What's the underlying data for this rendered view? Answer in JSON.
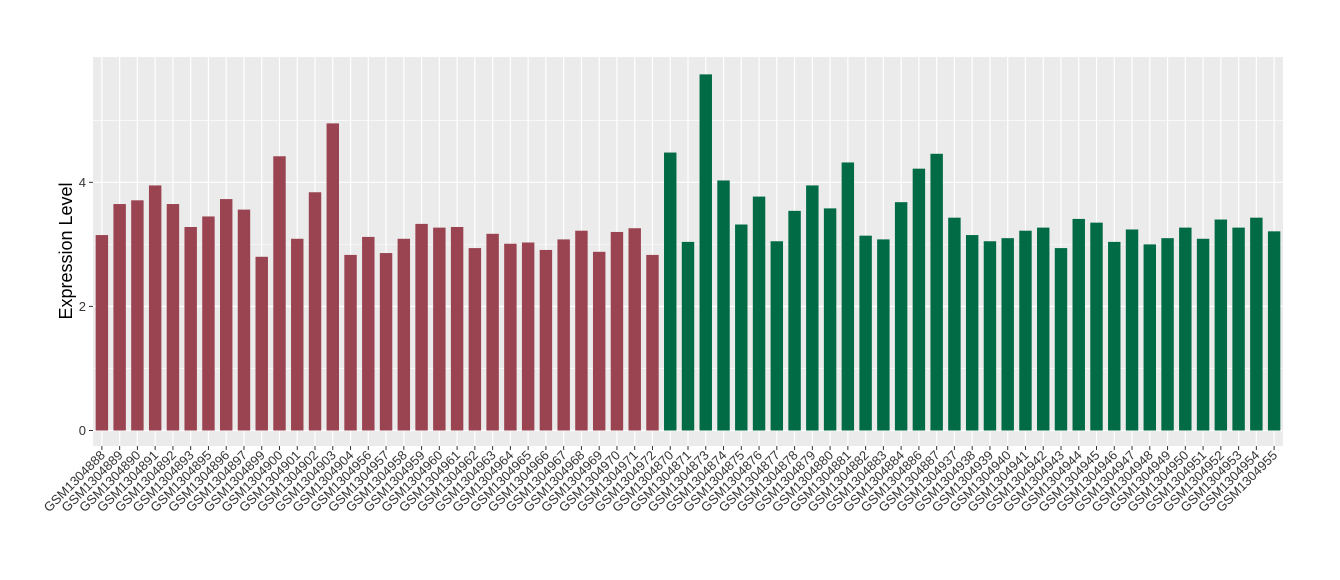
{
  "chart_data": {
    "type": "bar",
    "title": "",
    "xlabel": "",
    "ylabel": "Expression Level",
    "ylim": [
      -0.25,
      6.02
    ],
    "yticks": [
      0,
      2,
      4
    ],
    "grid": true,
    "legend": "none",
    "background": "#EBEBEB",
    "colors": {
      "group1": "#9A4451",
      "group2": "#006B45",
      "grid": "#FFFFFF",
      "axis_text": "#333333"
    },
    "series": [
      {
        "group": "group1",
        "color": "#9A4451",
        "categories": [
          "GSM1304888",
          "GSM1304889",
          "GSM1304890",
          "GSM1304891",
          "GSM1304892",
          "GSM1304893",
          "GSM1304895",
          "GSM1304896",
          "GSM1304897",
          "GSM1304899",
          "GSM1304900",
          "GSM1304901",
          "GSM1304902",
          "GSM1304903",
          "GSM1304904",
          "GSM1304956",
          "GSM1304957",
          "GSM1304958",
          "GSM1304959",
          "GSM1304960",
          "GSM1304961",
          "GSM1304962",
          "GSM1304963",
          "GSM1304964",
          "GSM1304965",
          "GSM1304966",
          "GSM1304967",
          "GSM1304968",
          "GSM1304969",
          "GSM1304970",
          "GSM1304971",
          "GSM1304972"
        ],
        "values": [
          3.15,
          3.65,
          3.71,
          3.95,
          3.65,
          3.28,
          3.45,
          3.73,
          3.56,
          2.8,
          4.42,
          3.09,
          3.84,
          4.95,
          2.83,
          3.12,
          2.86,
          3.09,
          3.33,
          3.27,
          3.28,
          2.94,
          3.17,
          3.01,
          3.03,
          2.91,
          3.08,
          3.22,
          2.88,
          3.2,
          3.26,
          2.83
        ]
      },
      {
        "group": "group2",
        "color": "#006B45",
        "categories": [
          "GSM1304870",
          "GSM1304871",
          "GSM1304873",
          "GSM1304874",
          "GSM1304875",
          "GSM1304876",
          "GSM1304877",
          "GSM1304878",
          "GSM1304879",
          "GSM1304880",
          "GSM1304881",
          "GSM1304882",
          "GSM1304883",
          "GSM1304884",
          "GSM1304886",
          "GSM1304887",
          "GSM1304937",
          "GSM1304938",
          "GSM1304939",
          "GSM1304940",
          "GSM1304941",
          "GSM1304942",
          "GSM1304943",
          "GSM1304944",
          "GSM1304945",
          "GSM1304946",
          "GSM1304947",
          "GSM1304948",
          "GSM1304949",
          "GSM1304950",
          "GSM1304951",
          "GSM1304952",
          "GSM1304953",
          "GSM1304954",
          "GSM1304955"
        ],
        "values": [
          4.48,
          3.04,
          5.74,
          4.03,
          3.32,
          3.77,
          3.05,
          3.54,
          3.95,
          3.58,
          4.32,
          3.14,
          3.08,
          3.68,
          4.22,
          4.46,
          3.43,
          3.15,
          3.05,
          3.1,
          3.22,
          3.27,
          2.94,
          3.41,
          3.35,
          3.04,
          3.24,
          3.0,
          3.1,
          3.27,
          3.09,
          3.4,
          3.27,
          3.43,
          3.21
        ]
      }
    ]
  }
}
